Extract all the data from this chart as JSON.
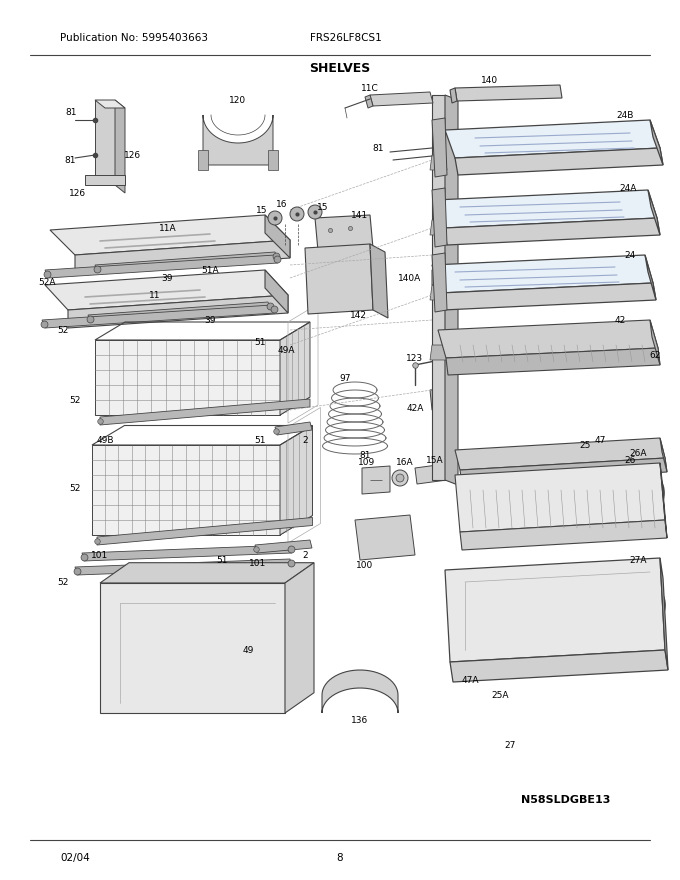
{
  "title": "SHELVES",
  "pub_no": "Publication No: 5995403663",
  "model": "FRS26LF8CS1",
  "date": "02/04",
  "page": "8",
  "watermark": "N58SLDGBE13",
  "bg_color": "#ffffff",
  "text_color": "#000000",
  "gray1": "#e8e8e8",
  "gray2": "#d0d0d0",
  "gray3": "#b8b8b8",
  "gray4": "#a0a0a0",
  "line_color": "#444444",
  "dashed_color": "#888888"
}
